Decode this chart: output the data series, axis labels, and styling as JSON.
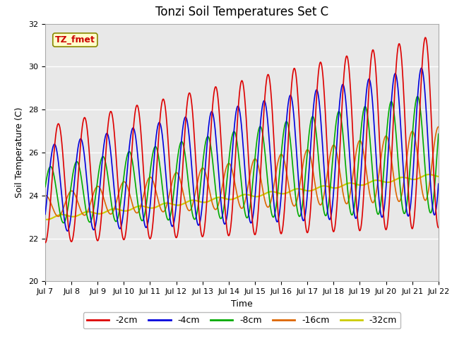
{
  "title": "Tonzi Soil Temperatures Set C",
  "xlabel": "Time",
  "ylabel": "Soil Temperature (C)",
  "ylim": [
    20,
    32
  ],
  "yticks": [
    20,
    22,
    24,
    26,
    28,
    30,
    32
  ],
  "x_tick_labels": [
    "Jul 7",
    "Jul 8",
    "Jul 9",
    "Jul 10",
    "Jul 11",
    "Jul 12",
    "Jul 13",
    "Jul 14",
    "Jul 15",
    "Jul 16",
    "Jul 17",
    "Jul 18",
    "Jul 19",
    "Jul 20",
    "Jul 21",
    "Jul 22"
  ],
  "label_box_text": "TZ_fmet",
  "label_box_color": "#ffffcc",
  "label_box_edge": "#888800",
  "label_text_color": "#cc0000",
  "lines": {
    "-2cm": {
      "color": "#dd0000",
      "lw": 1.2
    },
    "-4cm": {
      "color": "#0000dd",
      "lw": 1.2
    },
    "-8cm": {
      "color": "#00aa00",
      "lw": 1.2
    },
    "-16cm": {
      "color": "#dd6600",
      "lw": 1.2
    },
    "-32cm": {
      "color": "#cccc00",
      "lw": 1.5
    }
  },
  "background_color": "#d8d8d8",
  "plot_bg_color": "#e8e8e8",
  "title_fontsize": 12,
  "axis_fontsize": 9,
  "tick_fontsize": 8,
  "figsize": [
    6.4,
    4.8
  ],
  "dpi": 100
}
